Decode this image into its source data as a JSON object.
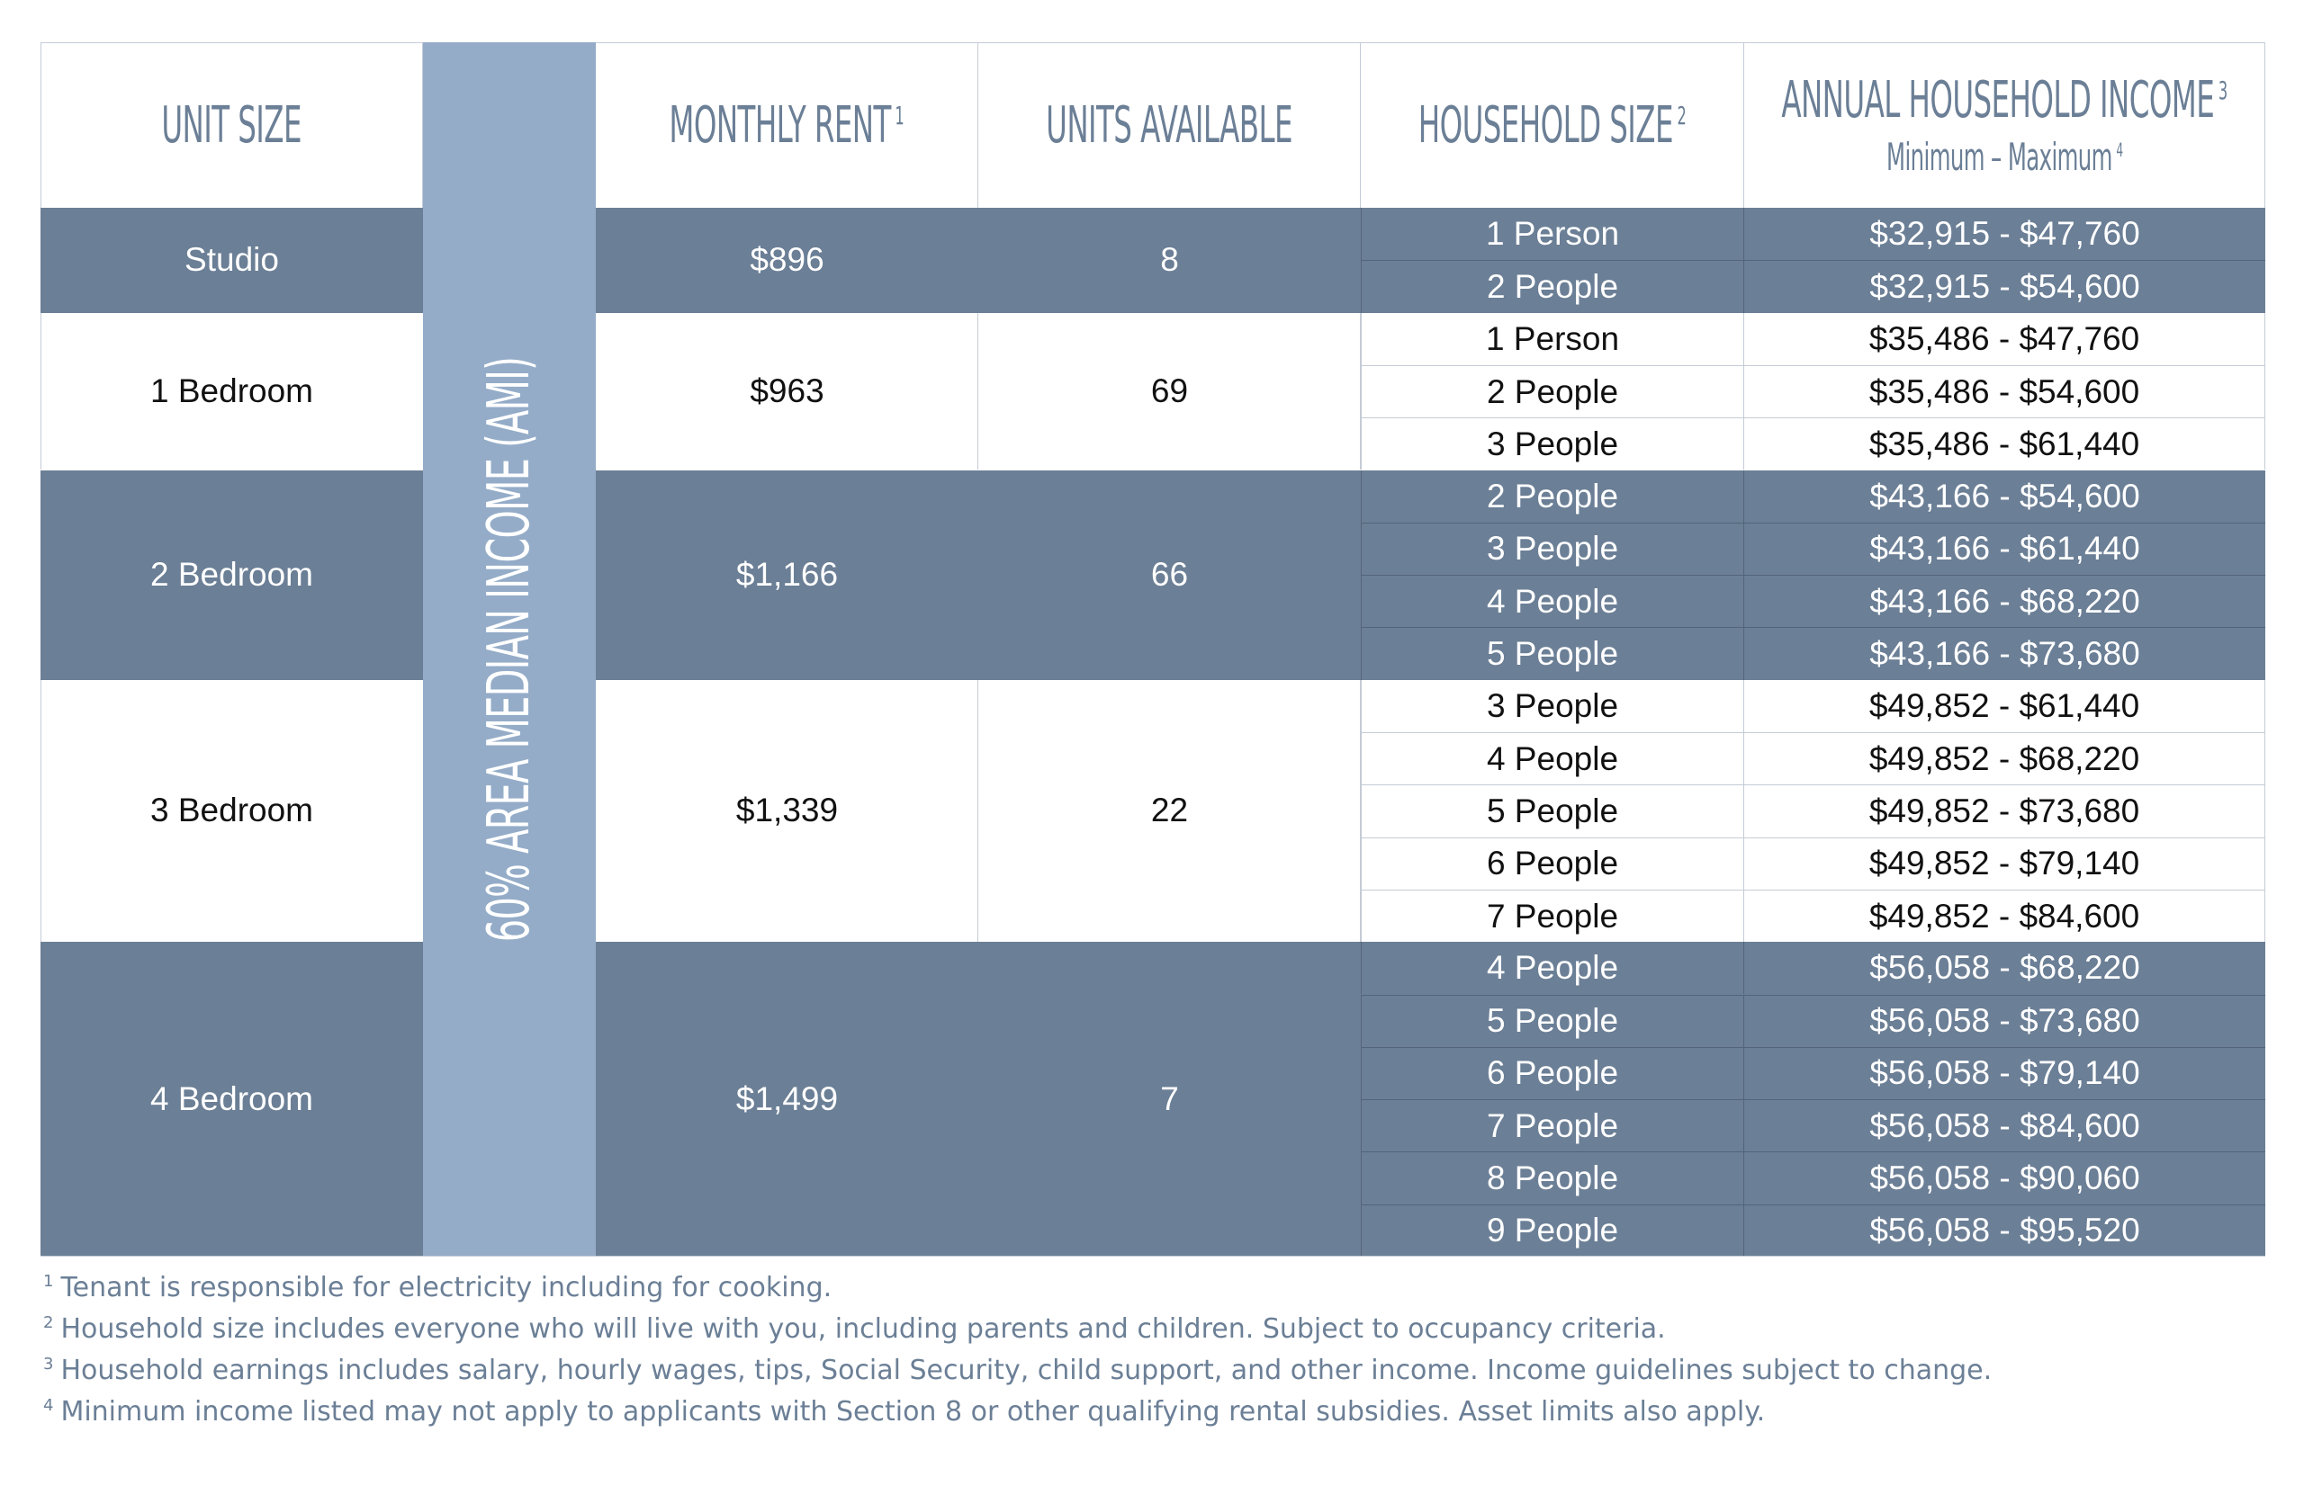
{
  "headers": {
    "unit_size": "UNIT SIZE",
    "monthly_rent": "MONTHLY RENT",
    "monthly_rent_note": "1",
    "units_available": "UNITS AVAILABLE",
    "household_size": "HOUSEHOLD SIZE",
    "household_size_note": "2",
    "annual_income": "ANNUAL HOUSEHOLD INCOME",
    "annual_income_note": "3",
    "annual_income_sub": "Minimum – Maximum",
    "annual_income_sub_note": "4"
  },
  "ami_label": "60% AREA MEDIAN INCOME (AMI)",
  "colors": {
    "band_dark": "#6b7f96",
    "ami_column": "#94acc8",
    "text_header": "#6b7f96"
  },
  "rows": [
    {
      "unit": "Studio",
      "rent": "$896",
      "units": "8",
      "tiers": [
        {
          "size": "1 Person",
          "income": "$32,915 - $47,760"
        },
        {
          "size": "2 People",
          "income": "$32,915 - $54,600"
        }
      ]
    },
    {
      "unit": "1 Bedroom",
      "rent": "$963",
      "units": "69",
      "tiers": [
        {
          "size": "1 Person",
          "income": "$35,486 - $47,760"
        },
        {
          "size": "2 People",
          "income": "$35,486 - $54,600"
        },
        {
          "size": "3 People",
          "income": "$35,486 - $61,440"
        }
      ]
    },
    {
      "unit": "2 Bedroom",
      "rent": "$1,166",
      "units": "66",
      "tiers": [
        {
          "size": "2 People",
          "income": "$43,166 - $54,600"
        },
        {
          "size": "3 People",
          "income": "$43,166 - $61,440"
        },
        {
          "size": "4 People",
          "income": "$43,166 - $68,220"
        },
        {
          "size": "5 People",
          "income": "$43,166 - $73,680"
        }
      ]
    },
    {
      "unit": "3 Bedroom",
      "rent": "$1,339",
      "units": "22",
      "tiers": [
        {
          "size": "3 People",
          "income": "$49,852 - $61,440"
        },
        {
          "size": "4 People",
          "income": "$49,852 - $68,220"
        },
        {
          "size": "5 People",
          "income": "$49,852 - $73,680"
        },
        {
          "size": "6 People",
          "income": "$49,852 - $79,140"
        },
        {
          "size": "7 People",
          "income": "$49,852 - $84,600"
        }
      ]
    },
    {
      "unit": "4 Bedroom",
      "rent": "$1,499",
      "units": "7",
      "tiers": [
        {
          "size": "4 People",
          "income": "$56,058 - $68,220"
        },
        {
          "size": "5 People",
          "income": "$56,058 - $73,680"
        },
        {
          "size": "6 People",
          "income": "$56,058 - $79,140"
        },
        {
          "size": "7 People",
          "income": "$56,058 - $84,600"
        },
        {
          "size": "8 People",
          "income": "$56,058 - $90,060"
        },
        {
          "size": "9 People",
          "income": "$56,058 - $95,520"
        }
      ]
    }
  ],
  "footnotes": [
    {
      "mark": "1",
      "text": "Tenant is responsible for electricity including for cooking."
    },
    {
      "mark": "2",
      "text": "Household size includes everyone who will live with you, including parents and children. Subject to occupancy criteria."
    },
    {
      "mark": "3",
      "text": "Household earnings includes salary, hourly wages, tips, Social Security, child support, and other income. Income guidelines subject to change."
    },
    {
      "mark": "4",
      "text": "Minimum income listed may not apply to applicants with Section 8 or other qualifying rental subsidies. Asset limits also apply."
    }
  ]
}
